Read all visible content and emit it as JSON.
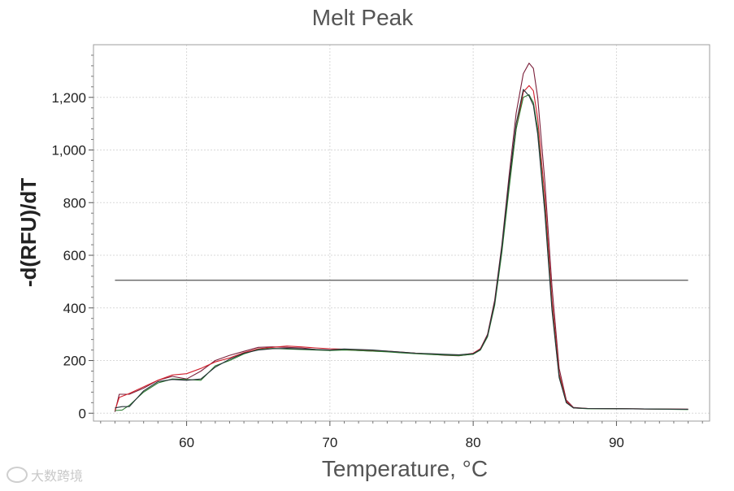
{
  "chart_data": {
    "type": "line",
    "title": "Melt Peak",
    "xlabel": "Temperature, °C",
    "ylabel": "-d(RFU)/dT",
    "xlim": [
      53.5,
      96.5
    ],
    "ylim": [
      -30,
      1400
    ],
    "x_ticks": [
      60,
      70,
      80,
      90
    ],
    "y_ticks": [
      0,
      200,
      400,
      600,
      800,
      1000,
      1200
    ],
    "x_tick_labels": [
      "60",
      "70",
      "80",
      "90"
    ],
    "y_tick_labels": [
      "0",
      "200",
      "400",
      "600",
      "800",
      "1,000",
      "1,200"
    ],
    "grid": true,
    "threshold": {
      "value": 505,
      "x_start": 55,
      "x_end": 95,
      "color": "#555555"
    },
    "series": [
      {
        "color": "#7a1f3a",
        "x": [
          55,
          55.3,
          56,
          57,
          58,
          59,
          60,
          61,
          62,
          63,
          64,
          65,
          66,
          67,
          68,
          69,
          70,
          71,
          72,
          73,
          74,
          75,
          76,
          77,
          78,
          79,
          80,
          80.5,
          81,
          81.5,
          82,
          82.5,
          83,
          83.5,
          83.9,
          84.2,
          84.5,
          85,
          85.5,
          86,
          86.5,
          87,
          88,
          90,
          92,
          95
        ],
        "y": [
          5,
          72,
          72,
          95,
          125,
          140,
          130,
          160,
          200,
          220,
          235,
          250,
          252,
          250,
          248,
          242,
          240,
          242,
          238,
          236,
          234,
          230,
          228,
          224,
          220,
          218,
          225,
          245,
          300,
          430,
          640,
          900,
          1140,
          1290,
          1330,
          1310,
          1200,
          880,
          480,
          170,
          50,
          22,
          18,
          18,
          16,
          15
        ]
      },
      {
        "color": "#d11f2c",
        "x": [
          55,
          55.3,
          56,
          57,
          58,
          59,
          60,
          61,
          62,
          63,
          64,
          65,
          66,
          67,
          68,
          69,
          70,
          71,
          72,
          73,
          74,
          75,
          76,
          77,
          78,
          79,
          80,
          80.5,
          81,
          81.5,
          82,
          82.5,
          83,
          83.5,
          83.9,
          84.2,
          84.5,
          85,
          85.5,
          86,
          86.5,
          87,
          88,
          90,
          92,
          95
        ],
        "y": [
          10,
          60,
          75,
          100,
          125,
          145,
          150,
          170,
          195,
          210,
          230,
          245,
          250,
          255,
          252,
          248,
          245,
          243,
          240,
          238,
          236,
          232,
          228,
          225,
          222,
          220,
          228,
          245,
          295,
          420,
          620,
          860,
          1080,
          1220,
          1245,
          1225,
          1120,
          820,
          430,
          150,
          45,
          20,
          18,
          17,
          16,
          15
        ]
      },
      {
        "color": "#2e7d32",
        "x": [
          55,
          55.5,
          56,
          57,
          58,
          59,
          60,
          61,
          62,
          63,
          64,
          65,
          66,
          67,
          68,
          69,
          70,
          71,
          72,
          73,
          74,
          75,
          76,
          77,
          78,
          79,
          80,
          80.5,
          81,
          81.5,
          82,
          82.5,
          83,
          83.5,
          83.9,
          84.2,
          84.5,
          85,
          85.5,
          86,
          86.5,
          87,
          88,
          90,
          92,
          95
        ],
        "y": [
          10,
          12,
          30,
          80,
          115,
          130,
          128,
          125,
          180,
          200,
          225,
          242,
          246,
          244,
          242,
          240,
          238,
          240,
          238,
          236,
          233,
          229,
          226,
          223,
          221,
          219,
          224,
          240,
          290,
          410,
          610,
          850,
          1080,
          1200,
          1210,
          1180,
          1080,
          780,
          400,
          140,
          40,
          20,
          17,
          17,
          16,
          14
        ]
      },
      {
        "color": "#263238",
        "x": [
          55,
          55.5,
          56,
          57,
          58,
          59,
          60,
          61,
          62,
          63,
          64,
          65,
          66,
          67,
          68,
          69,
          70,
          71,
          72,
          73,
          74,
          75,
          76,
          77,
          78,
          79,
          80,
          80.5,
          81,
          81.5,
          82,
          82.5,
          83,
          83.5,
          83.9,
          84.2,
          84.5,
          85,
          85.5,
          86,
          86.5,
          87,
          88,
          90,
          92,
          95
        ],
        "y": [
          20,
          25,
          25,
          85,
          120,
          128,
          125,
          130,
          175,
          205,
          228,
          240,
          245,
          246,
          244,
          242,
          240,
          244,
          242,
          240,
          236,
          232,
          228,
          226,
          224,
          222,
          226,
          242,
          295,
          420,
          630,
          880,
          1100,
          1230,
          1205,
          1170,
          1060,
          760,
          390,
          135,
          40,
          20,
          18,
          17,
          16,
          15
        ]
      }
    ]
  },
  "watermark": {
    "text": "大数跨境"
  }
}
